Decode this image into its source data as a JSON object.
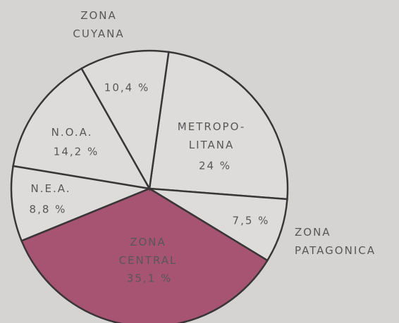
{
  "chart_data": {
    "type": "pie",
    "categories": [
      "METROPO-\nLITANA",
      "ZONA\nPATAGONICA",
      "ZONA\nCENTRAL",
      "N.E.A.",
      "N.O.A.",
      "ZONA\nCUYANA"
    ],
    "values": [
      24,
      7.5,
      35.1,
      8.8,
      14.2,
      10.4
    ],
    "value_labels": [
      "24 %",
      "7,5 %",
      "35,1 %",
      "8,8 %",
      "14,2 %",
      "10,4 %"
    ],
    "colors": [
      "#dddcda",
      "#dddcda",
      "#a65471",
      "#dddcda",
      "#dddcda",
      "#dddcda"
    ]
  }
}
